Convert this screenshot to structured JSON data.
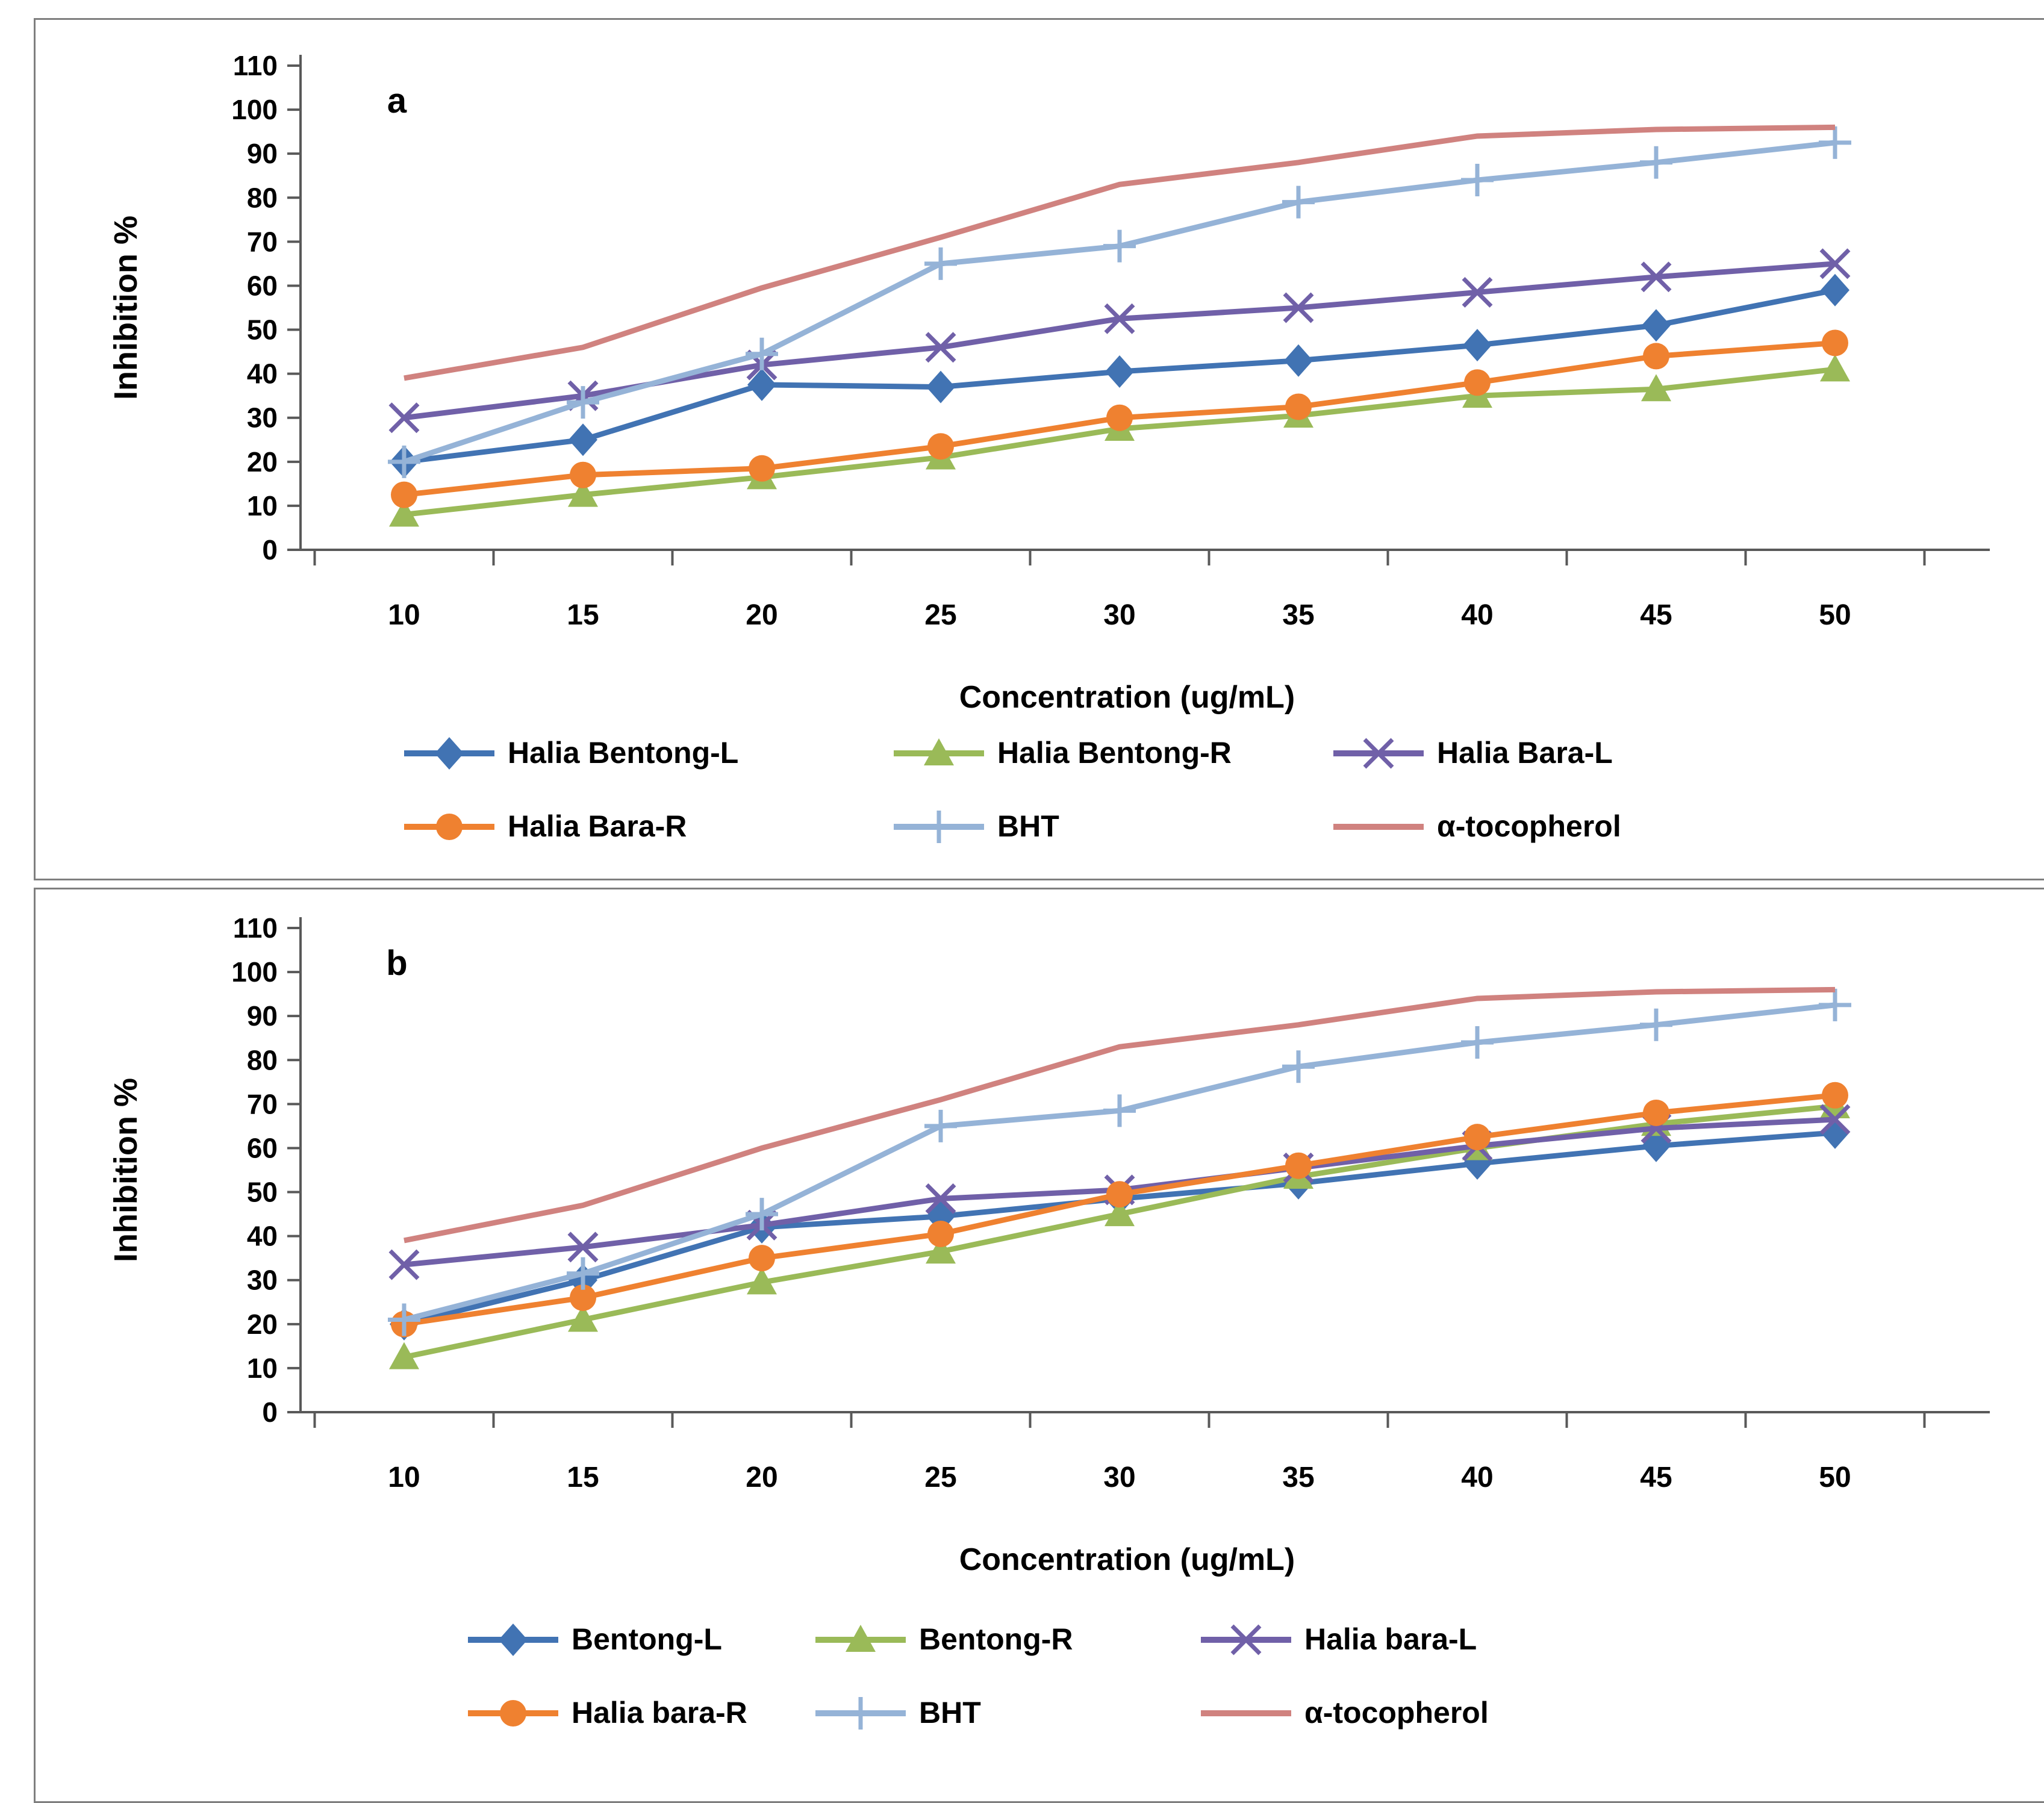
{
  "page": {
    "background": "#ffffff",
    "panel_border_color": "#7f7f7f",
    "axis_color": "#595959",
    "tick_text_color": "#000000"
  },
  "chart_data": [
    {
      "id": "a",
      "type": "line",
      "panel_label": "a",
      "xlabel": "Concentration (ug/mL)",
      "ylabel": "Inhibition %",
      "x_categories": [
        10,
        15,
        20,
        25,
        30,
        35,
        40,
        45,
        50
      ],
      "yticks": [
        0,
        10,
        20,
        30,
        40,
        50,
        60,
        70,
        80,
        90,
        100,
        110
      ],
      "ylim": [
        0,
        110
      ],
      "grid": false,
      "legend_position": "bottom",
      "legend_rows": [
        [
          "Halia Bentong-L",
          "Halia Bentong-R",
          "Halia Bara-L"
        ],
        [
          "Halia Bara-R",
          "BHT",
          "α-tocopherol"
        ]
      ],
      "series": [
        {
          "name": "Halia Bentong-L",
          "color": "#4173B3",
          "marker": "diamond",
          "values": [
            20,
            25,
            37.5,
            37,
            40.5,
            43,
            46.5,
            51,
            59
          ]
        },
        {
          "name": "Halia Bentong-R",
          "color": "#9ABA58",
          "marker": "triangle",
          "values": [
            8,
            12.5,
            16.5,
            21,
            27.5,
            30.5,
            35,
            36.5,
            41
          ]
        },
        {
          "name": "Halia Bara-L",
          "color": "#7060A8",
          "marker": "x",
          "values": [
            30,
            35,
            42,
            46,
            52.5,
            55,
            58.5,
            62,
            65
          ]
        },
        {
          "name": "Halia Bara-R",
          "color": "#EF8130",
          "marker": "circle",
          "values": [
            12.5,
            17,
            18.5,
            23.5,
            30,
            32.5,
            38,
            44,
            47
          ]
        },
        {
          "name": "BHT",
          "color": "#95B3D7",
          "marker": "plus",
          "values": [
            20,
            33.5,
            44.5,
            65,
            69,
            79,
            84,
            88,
            92.5
          ]
        },
        {
          "name": "α-tocopherol",
          "color": "#D0827F",
          "marker": "none",
          "values": [
            39,
            46,
            59.5,
            71,
            83,
            88,
            94,
            95.5,
            96
          ]
        }
      ]
    },
    {
      "id": "b",
      "type": "line",
      "panel_label": "b",
      "xlabel": "Concentration (ug/mL)",
      "ylabel": "Inhibition %",
      "x_categories": [
        10,
        15,
        20,
        25,
        30,
        35,
        40,
        45,
        50
      ],
      "yticks": [
        0,
        10,
        20,
        30,
        40,
        50,
        60,
        70,
        80,
        90,
        100,
        110
      ],
      "ylim": [
        0,
        110
      ],
      "grid": false,
      "legend_position": "bottom",
      "legend_rows": [
        [
          "Bentong-L",
          "Bentong-R",
          "Halia bara-L"
        ],
        [
          "Halia bara-R",
          "BHT",
          "α-tocopherol"
        ]
      ],
      "series": [
        {
          "name": "Bentong-L",
          "color": "#4173B3",
          "marker": "diamond",
          "values": [
            20,
            30,
            42,
            44.5,
            48.5,
            52,
            56.5,
            60.5,
            63.5
          ]
        },
        {
          "name": "Bentong-R",
          "color": "#9ABA58",
          "marker": "triangle",
          "values": [
            12.5,
            21,
            29.5,
            36.5,
            45,
            53.5,
            60,
            65.5,
            69.5
          ]
        },
        {
          "name": "Halia bara-L",
          "color": "#7060A8",
          "marker": "x",
          "values": [
            33.5,
            37.5,
            42.5,
            48.5,
            50.5,
            55.5,
            60.5,
            64.5,
            66.5
          ]
        },
        {
          "name": "Halia bara-R",
          "color": "#EF8130",
          "marker": "circle",
          "values": [
            20,
            26,
            35,
            40.5,
            49.5,
            56,
            62.5,
            68,
            72
          ]
        },
        {
          "name": "BHT",
          "color": "#95B3D7",
          "marker": "plus",
          "values": [
            21,
            31.5,
            45,
            65,
            68.5,
            78.5,
            84,
            88,
            92.5
          ]
        },
        {
          "name": "α-tocopherol",
          "color": "#D0827F",
          "marker": "none",
          "values": [
            39,
            47,
            60,
            71,
            83,
            88,
            94,
            95.5,
            96
          ]
        }
      ]
    }
  ]
}
